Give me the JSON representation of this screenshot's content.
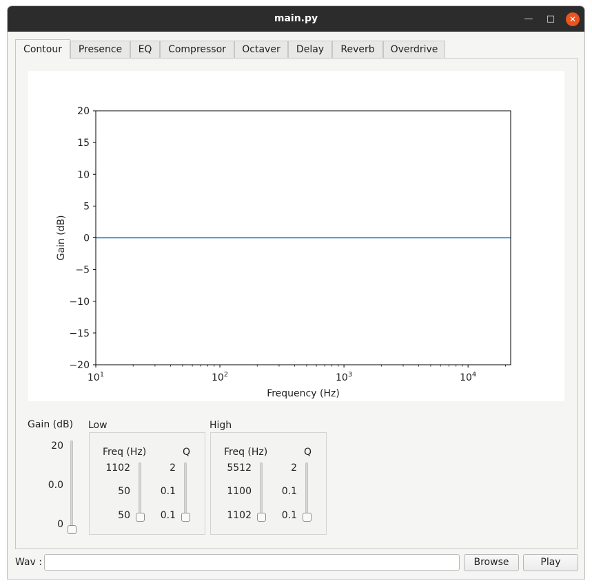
{
  "window": {
    "title": "main.py",
    "min_icon": "minimize-icon",
    "max_icon": "maximize-icon",
    "close_icon": "close-icon"
  },
  "tabs": [
    {
      "label": "Contour",
      "active": true
    },
    {
      "label": "Presence"
    },
    {
      "label": "EQ"
    },
    {
      "label": "Compressor"
    },
    {
      "label": "Octaver"
    },
    {
      "label": "Delay"
    },
    {
      "label": "Reverb"
    },
    {
      "label": "Overdrive"
    }
  ],
  "chart_data": {
    "type": "line",
    "xlabel": "Frequency (Hz)",
    "ylabel": "Gain (dB)",
    "xscale": "log",
    "xlim": [
      10,
      22050
    ],
    "ylim": [
      -20,
      20
    ],
    "x_ticks": [
      10,
      100,
      1000,
      10000
    ],
    "x_tick_labels": [
      {
        "base": "10",
        "exp": "1"
      },
      {
        "base": "10",
        "exp": "2"
      },
      {
        "base": "10",
        "exp": "3"
      },
      {
        "base": "10",
        "exp": "4"
      }
    ],
    "y_ticks": [
      20,
      15,
      10,
      5,
      0,
      -5,
      -10,
      -15,
      -20
    ],
    "y_tick_labels": [
      "20",
      "15",
      "10",
      "5",
      "0",
      "−5",
      "−10",
      "−15",
      "−20"
    ],
    "series": [
      {
        "x": [
          10,
          22050
        ],
        "y": [
          0,
          0
        ],
        "color": "#1f77b4"
      }
    ],
    "grid": false
  },
  "controls": {
    "gain": {
      "title": "Gain (dB)",
      "max": "20",
      "mid": "0.0",
      "min": "0",
      "value": 0
    },
    "low": {
      "title": "Low",
      "freq_title": "Freq (Hz)",
      "freq_max": "1102",
      "freq_mid": "50",
      "freq_min": "50",
      "freq_value": 0,
      "q_title": "Q",
      "q_max": "2",
      "q_mid": "0.1",
      "q_min": "0.1",
      "q_value": 0
    },
    "high": {
      "title": "High",
      "freq_title": "Freq (Hz)",
      "freq_max": "5512",
      "freq_mid": "1100",
      "freq_min": "1102",
      "freq_value": 0,
      "q_title": "Q",
      "q_max": "2",
      "q_mid": "0.1",
      "q_min": "0.1",
      "q_value": 0
    }
  },
  "footer": {
    "wav_label": "Wav :",
    "wav_value": "",
    "browse_label": "Browse",
    "play_label": "Play"
  }
}
